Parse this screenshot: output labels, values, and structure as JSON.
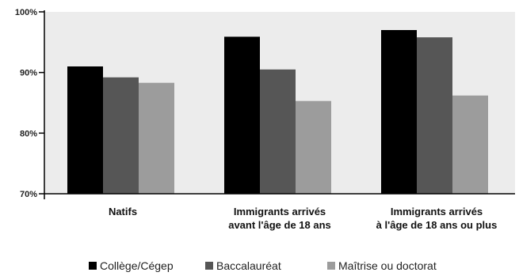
{
  "chart_data": {
    "type": "bar",
    "categories": [
      [
        "Natifs"
      ],
      [
        "Immigrants arrivés",
        "avant l'âge de 18 ans"
      ],
      [
        "Immigrants arrivés",
        "à l'âge de 18 ans ou plus"
      ]
    ],
    "series": [
      {
        "name": "Collège/Cégep",
        "color": "#000000",
        "values": [
          91.0,
          95.9,
          97.0
        ]
      },
      {
        "name": "Baccalauréat",
        "color": "#565656",
        "values": [
          89.2,
          90.5,
          95.8
        ]
      },
      {
        "name": "Maîtrise ou doctorat",
        "color": "#9c9c9c",
        "values": [
          88.3,
          85.3,
          86.2
        ]
      }
    ],
    "ylim": [
      70,
      100
    ],
    "yticks": [
      70,
      80,
      90,
      100
    ],
    "ytick_labels": [
      "70%",
      "80%",
      "90%",
      "100%"
    ],
    "plot_background": "#ececec",
    "grid": false,
    "legend_position": "bottom"
  }
}
